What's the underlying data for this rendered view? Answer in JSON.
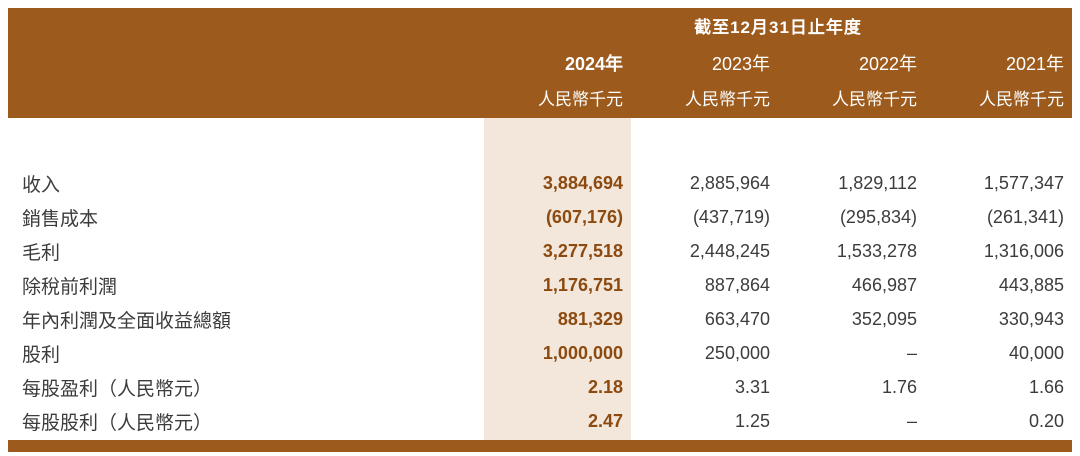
{
  "report": {
    "period_header": "截至12月31日止年度",
    "columns": [
      {
        "year": "2024年",
        "unit": "人民幣千元"
      },
      {
        "year": "2023年",
        "unit": "人民幣千元"
      },
      {
        "year": "2022年",
        "unit": "人民幣千元"
      },
      {
        "year": "2021年",
        "unit": "人民幣千元"
      }
    ],
    "rows": [
      {
        "label": "收入",
        "values": [
          "3,884,694",
          "2,885,964",
          "1,829,112",
          "1,577,347"
        ]
      },
      {
        "label": "銷售成本",
        "values": [
          "(607,176)",
          "(437,719)",
          "(295,834)",
          "(261,341)"
        ]
      },
      {
        "label": "毛利",
        "values": [
          "3,277,518",
          "2,448,245",
          "1,533,278",
          "1,316,006"
        ]
      },
      {
        "label": "除稅前利潤",
        "values": [
          "1,176,751",
          "887,864",
          "466,987",
          "443,885"
        ]
      },
      {
        "label": "年內利潤及全面收益總額",
        "values": [
          "881,329",
          "663,470",
          "352,095",
          "330,943"
        ]
      },
      {
        "label": "股利",
        "values": [
          "1,000,000",
          "250,000",
          "–",
          "40,000"
        ]
      },
      {
        "label": "每股盈利（人民幣元）",
        "values": [
          "2.18",
          "3.31",
          "1.76",
          "1.66"
        ]
      },
      {
        "label": "每股股利（人民幣元）",
        "values": [
          "2.47",
          "1.25",
          "–",
          "0.20"
        ]
      }
    ]
  },
  "colors": {
    "band_brown": "#9c5a1c",
    "highlight_beige": "#f2e7da",
    "highlight_text_brown": "#8c4a10",
    "body_text": "#3c3c3c"
  }
}
